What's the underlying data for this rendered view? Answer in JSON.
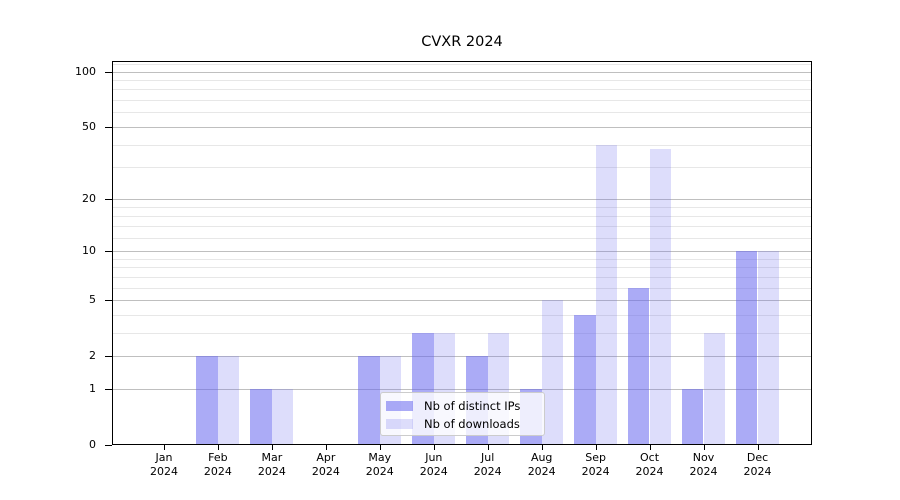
{
  "chart_data": {
    "type": "bar",
    "title": "CVXR 2024",
    "categories": [
      "Jan",
      "Feb",
      "Mar",
      "Apr",
      "May",
      "Jun",
      "Jul",
      "Aug",
      "Sep",
      "Oct",
      "Nov",
      "Dec"
    ],
    "year_label": "2024",
    "series": [
      {
        "name": "Nb of distinct IPs",
        "color": "rgba(102,102,238,0.55)",
        "values": [
          0,
          2,
          1,
          0,
          2,
          3,
          2,
          1,
          4,
          6,
          1,
          10
        ]
      },
      {
        "name": "Nb of downloads",
        "color": "rgba(102,102,238,0.22)",
        "values": [
          0,
          2,
          1,
          0,
          2,
          3,
          3,
          5,
          40,
          38,
          3,
          10
        ]
      }
    ],
    "yscale": "log1p",
    "yticks": [
      0,
      1,
      2,
      5,
      10,
      20,
      50,
      100
    ],
    "yticks_minor": [
      3,
      4,
      6,
      7,
      8,
      9,
      12,
      14,
      16,
      18,
      30,
      40,
      60,
      70,
      80,
      90,
      110
    ],
    "ylim": [
      0,
      112
    ],
    "grid": true,
    "legend_position": "lower-center-inside"
  },
  "colors": {
    "grid_major": "#bfbfbf",
    "grid_minor": "#e7e7e7",
    "spine": "#000000",
    "bar_dark": "rgba(102,102,238,0.55)",
    "bar_light": "rgba(102,102,238,0.22)"
  }
}
